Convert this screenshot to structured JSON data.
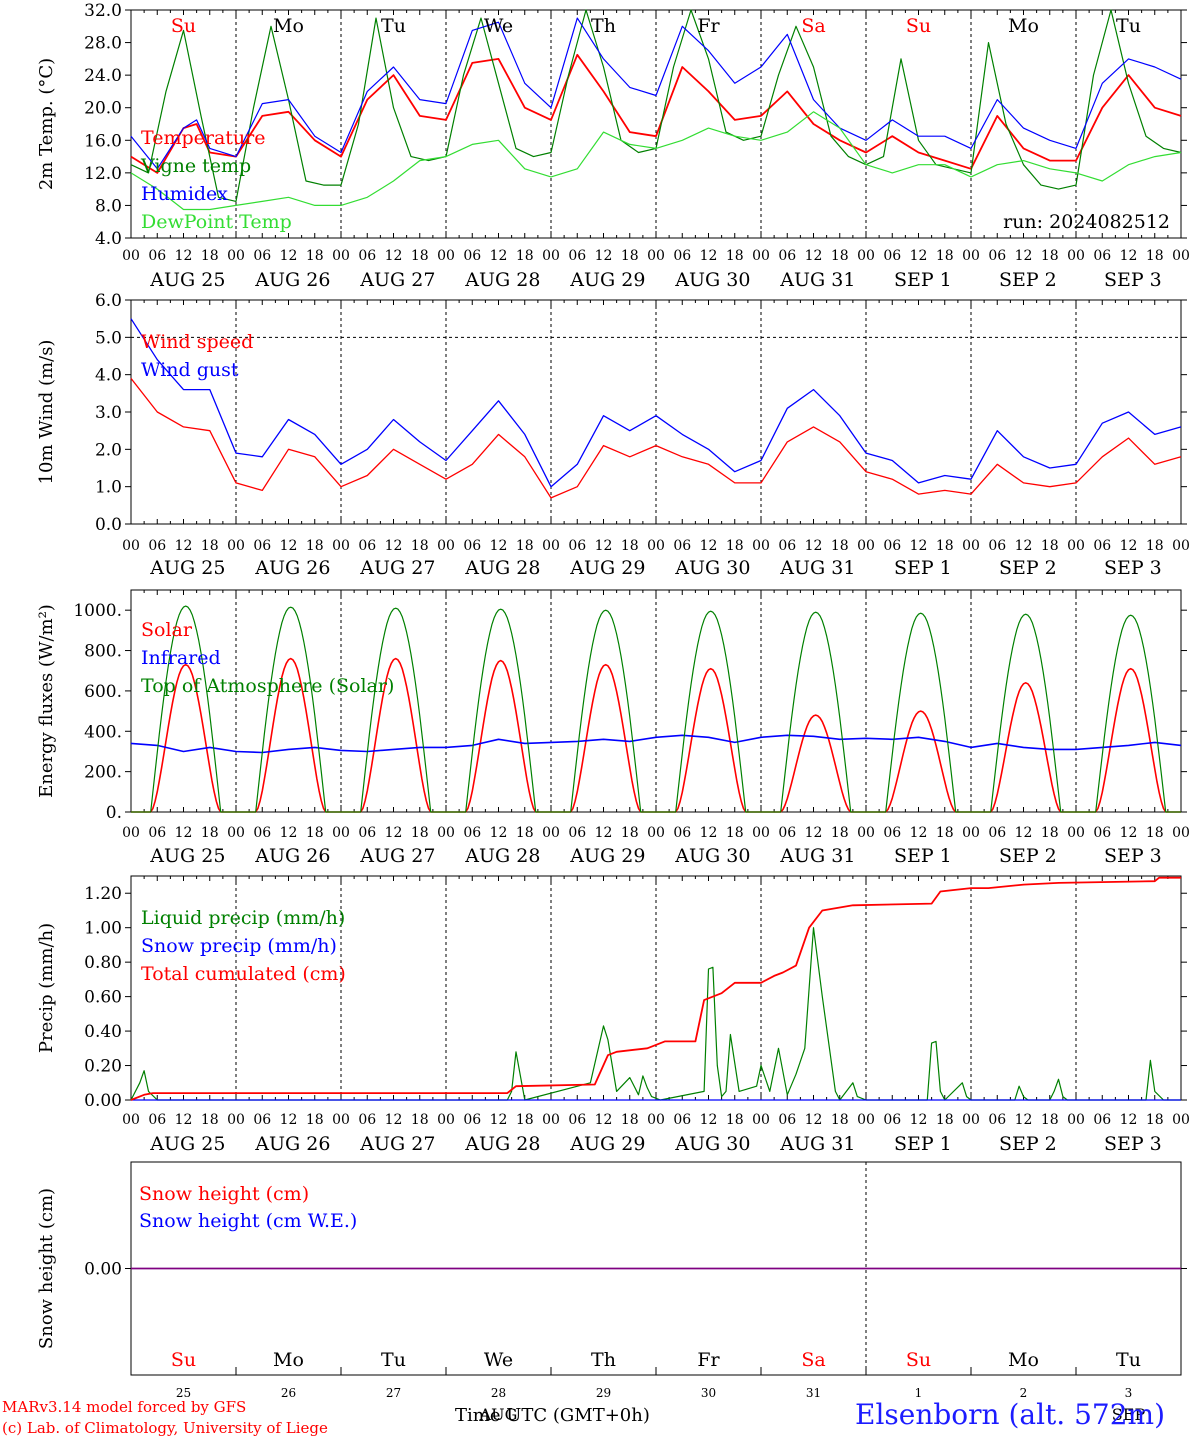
{
  "run_label": "run: 2024082512",
  "day_names": [
    "Su",
    "Mo",
    "Tu",
    "We",
    "Th",
    "Fr",
    "Sa",
    "Su",
    "Mo",
    "Tu"
  ],
  "day_name_colors": [
    "#ff0000",
    "#000000",
    "#000000",
    "#000000",
    "#000000",
    "#000000",
    "#ff0000",
    "#ff0000",
    "#000000",
    "#000000"
  ],
  "date_labels": [
    "AUG 25",
    "AUG 26",
    "AUG 27",
    "AUG 28",
    "AUG 29",
    "AUG 30",
    "AUG 31",
    "SEP  1",
    "SEP  2",
    "SEP  3"
  ],
  "hour_labels": [
    "00",
    "06",
    "12",
    "18"
  ],
  "hour_end_label": "00",
  "bottom_day_numbers": [
    "25",
    "26",
    "27",
    "28",
    "29",
    "30",
    "31",
    "1",
    "2",
    "3"
  ],
  "bottom_month_labels": [
    {
      "text": "AUG",
      "day_index": 3
    },
    {
      "text": "SEP",
      "day_index": 9
    }
  ],
  "footer": {
    "model": "MARv3.14 model forced by GFS",
    "copyright": "(c) Lab. of Climatology, University of Liege",
    "axis_title": "Time UTC (GMT+0h)",
    "station": "Elsenborn (alt. 572m)"
  },
  "chart_data": [
    {
      "type": "line",
      "ylabel": "2m Temp. (°C)",
      "ylim": [
        4.0,
        32.0
      ],
      "yticks": [
        "4.0",
        "8.0",
        "12.0",
        "16.0",
        "20.0",
        "24.0",
        "28.0",
        "32.0"
      ],
      "x_unit": "hours since AUG 25 00 UTC",
      "xlim": [
        0,
        240
      ],
      "legend_placement": "top-left",
      "series": [
        {
          "name": "Temperature",
          "color": "#ff0000",
          "x": [
            0,
            6,
            12,
            15,
            18,
            24,
            30,
            36,
            42,
            48,
            54,
            60,
            66,
            72,
            78,
            84,
            90,
            96,
            102,
            108,
            114,
            120,
            126,
            132,
            138,
            144,
            150,
            156,
            162,
            168,
            174,
            180,
            186,
            192,
            198,
            204,
            210,
            216,
            222,
            228,
            234,
            240
          ],
          "values": [
            14.0,
            12.0,
            17.5,
            18.0,
            14.5,
            14.0,
            19.0,
            19.5,
            16.0,
            14.0,
            21.0,
            24.0,
            19.0,
            18.5,
            25.5,
            26.0,
            20.0,
            18.5,
            26.5,
            22.0,
            17.0,
            16.5,
            25.0,
            22.0,
            18.5,
            19.0,
            22.0,
            18.0,
            16.0,
            14.5,
            16.5,
            14.5,
            13.5,
            12.5,
            19.0,
            15.0,
            13.5,
            13.5,
            20.0,
            24.0,
            20.0,
            19.0
          ]
        },
        {
          "name": "Vigne temp",
          "color": "#008000",
          "x": [
            0,
            4,
            8,
            12,
            16,
            20,
            24,
            28,
            32,
            36,
            40,
            44,
            48,
            52,
            56,
            60,
            64,
            68,
            72,
            76,
            80,
            84,
            88,
            92,
            96,
            100,
            104,
            108,
            112,
            116,
            120,
            124,
            128,
            132,
            136,
            140,
            144,
            148,
            152,
            156,
            160,
            164,
            168,
            172,
            176,
            180,
            184,
            188,
            192,
            196,
            200,
            204,
            208,
            212,
            216,
            220,
            224,
            228,
            232,
            236,
            240
          ],
          "values": [
            13.0,
            12.0,
            22.0,
            29.5,
            19.0,
            9.0,
            8.5,
            20.0,
            30.0,
            21.0,
            11.0,
            10.5,
            10.5,
            18.0,
            31.0,
            20.0,
            14.0,
            13.5,
            14.0,
            24.0,
            31.0,
            23.0,
            15.0,
            14.0,
            14.5,
            24.0,
            32.0,
            25.0,
            16.0,
            14.5,
            15.0,
            25.0,
            32.0,
            26.0,
            17.0,
            16.0,
            16.5,
            24.0,
            30.0,
            25.0,
            16.5,
            14.0,
            13.0,
            14.0,
            26.0,
            16.0,
            13.0,
            12.5,
            12.0,
            28.0,
            18.0,
            13.0,
            10.5,
            10.0,
            10.5,
            24.0,
            32.0,
            23.0,
            16.5,
            15.0,
            14.5
          ]
        },
        {
          "name": "Humidex",
          "color": "#0000ff",
          "x": [
            0,
            6,
            12,
            15,
            18,
            24,
            30,
            36,
            42,
            48,
            54,
            60,
            66,
            72,
            78,
            84,
            90,
            96,
            102,
            108,
            114,
            120,
            126,
            132,
            138,
            144,
            150,
            156,
            162,
            168,
            174,
            180,
            186,
            192,
            198,
            204,
            210,
            216,
            222,
            228,
            234,
            240
          ],
          "values": [
            16.5,
            12.5,
            17.5,
            18.5,
            15.0,
            14.0,
            20.5,
            21.0,
            16.5,
            14.5,
            22.0,
            25.0,
            21.0,
            20.5,
            29.5,
            30.5,
            23.0,
            20.0,
            31.0,
            26.0,
            22.5,
            21.5,
            30.0,
            27.0,
            23.0,
            25.0,
            29.0,
            21.0,
            17.5,
            16.0,
            18.5,
            16.5,
            16.5,
            15.0,
            21.0,
            17.5,
            16.0,
            15.0,
            23.0,
            26.0,
            25.0,
            23.5
          ]
        },
        {
          "name": "DewPoint Temp",
          "color": "#33dd33",
          "x": [
            0,
            6,
            12,
            18,
            24,
            30,
            36,
            42,
            48,
            54,
            60,
            66,
            72,
            78,
            84,
            90,
            96,
            102,
            108,
            114,
            120,
            126,
            132,
            138,
            144,
            150,
            156,
            162,
            168,
            174,
            180,
            186,
            192,
            198,
            204,
            210,
            216,
            222,
            228,
            234,
            240
          ],
          "values": [
            12.0,
            10.0,
            7.5,
            7.5,
            8.0,
            8.5,
            9.0,
            8.0,
            8.0,
            9.0,
            11.0,
            13.5,
            14.0,
            15.5,
            16.0,
            12.5,
            11.5,
            12.5,
            17.0,
            15.5,
            15.0,
            16.0,
            17.5,
            16.5,
            16.0,
            17.0,
            19.5,
            17.5,
            13.0,
            12.0,
            13.0,
            13.0,
            11.5,
            13.0,
            13.5,
            12.5,
            12.0,
            11.0,
            13.0,
            14.0,
            14.5
          ]
        }
      ]
    },
    {
      "type": "line",
      "ylabel": "10m Wind (m/s)",
      "ylim": [
        0.0,
        6.0
      ],
      "yticks": [
        "0.0",
        "1.0",
        "2.0",
        "3.0",
        "4.0",
        "5.0",
        "6.0"
      ],
      "x_unit": "hours since AUG 25 00 UTC",
      "xlim": [
        0,
        240
      ],
      "legend_placement": "top-left",
      "series": [
        {
          "name": "Wind speed",
          "color": "#ff0000",
          "x": [
            0,
            6,
            12,
            18,
            24,
            30,
            36,
            42,
            48,
            54,
            60,
            66,
            72,
            78,
            84,
            90,
            96,
            102,
            108,
            114,
            120,
            126,
            132,
            138,
            144,
            150,
            156,
            162,
            168,
            174,
            180,
            186,
            192,
            198,
            204,
            210,
            216,
            222,
            228,
            234,
            240
          ],
          "values": [
            3.9,
            3.0,
            2.6,
            2.5,
            1.1,
            0.9,
            2.0,
            1.8,
            1.0,
            1.3,
            2.0,
            1.6,
            1.2,
            1.6,
            2.4,
            1.8,
            0.7,
            1.0,
            2.1,
            1.8,
            2.1,
            1.8,
            1.6,
            1.1,
            1.1,
            2.2,
            2.6,
            2.2,
            1.4,
            1.2,
            0.8,
            0.9,
            0.8,
            1.6,
            1.1,
            1.0,
            1.1,
            1.8,
            2.3,
            1.6,
            1.8
          ]
        },
        {
          "name": "Wind gust",
          "color": "#0000ff",
          "x": [
            0,
            6,
            12,
            18,
            24,
            30,
            36,
            42,
            48,
            54,
            60,
            66,
            72,
            78,
            84,
            90,
            96,
            102,
            108,
            114,
            120,
            126,
            132,
            138,
            144,
            150,
            156,
            162,
            168,
            174,
            180,
            186,
            192,
            198,
            204,
            210,
            216,
            222,
            228,
            234,
            240
          ],
          "values": [
            5.5,
            4.4,
            3.6,
            3.6,
            1.9,
            1.8,
            2.8,
            2.4,
            1.6,
            2.0,
            2.8,
            2.2,
            1.7,
            2.5,
            3.3,
            2.4,
            1.0,
            1.6,
            2.9,
            2.5,
            2.9,
            2.4,
            2.0,
            1.4,
            1.7,
            3.1,
            3.6,
            2.9,
            1.9,
            1.7,
            1.1,
            1.3,
            1.2,
            2.5,
            1.8,
            1.5,
            1.6,
            2.7,
            3.0,
            2.4,
            2.6
          ]
        }
      ]
    },
    {
      "type": "line",
      "ylabel": "Energy fluxes (W/m²)",
      "ylim": [
        0,
        1100
      ],
      "yticks": [
        "0.",
        "200.",
        "400.",
        "600.",
        "800.",
        "1000."
      ],
      "x_unit": "hours since AUG 25 00 UTC",
      "xlim": [
        0,
        240
      ],
      "legend_placement": "top-left",
      "series": [
        {
          "name": "Solar",
          "color": "#ff0000",
          "daily_peak": [
            730,
            760,
            760,
            750,
            730,
            710,
            480,
            500,
            640,
            710
          ],
          "peak_hour": 12.5
        },
        {
          "name": "Infrared",
          "color": "#0000ff",
          "x": [
            0,
            6,
            12,
            18,
            24,
            30,
            36,
            42,
            48,
            54,
            60,
            66,
            72,
            78,
            84,
            90,
            96,
            102,
            108,
            114,
            120,
            126,
            132,
            138,
            144,
            150,
            156,
            162,
            168,
            174,
            180,
            186,
            192,
            198,
            204,
            210,
            216,
            222,
            228,
            234,
            240
          ],
          "values": [
            340,
            330,
            300,
            320,
            300,
            295,
            310,
            320,
            305,
            300,
            310,
            320,
            320,
            330,
            360,
            340,
            345,
            350,
            360,
            350,
            370,
            380,
            370,
            345,
            370,
            380,
            375,
            360,
            365,
            360,
            370,
            350,
            320,
            340,
            320,
            310,
            310,
            320,
            330,
            345,
            330
          ]
        },
        {
          "name": "Top of Atmosphere (Solar)",
          "color": "#008000",
          "daily_peak": [
            1020,
            1015,
            1010,
            1005,
            1000,
            995,
            990,
            985,
            980,
            975
          ],
          "peak_hour": 12.5
        }
      ]
    },
    {
      "type": "line",
      "ylabel": "Precip (mm/h)",
      "ylim": [
        0.0,
        1.3
      ],
      "yticks": [
        "0.00",
        "0.20",
        "0.40",
        "0.60",
        "0.80",
        "1.00",
        "1.20"
      ],
      "x_unit": "hours since AUG 25 00 UTC",
      "xlim": [
        0,
        240
      ],
      "legend_placement": "top-left",
      "series": [
        {
          "name": "Liquid precip (mm/h)",
          "color": "#008000",
          "x": [
            0,
            2,
            3,
            4,
            6,
            86,
            87,
            88,
            90,
            105,
            108,
            109,
            111,
            114,
            116,
            117,
            118,
            119,
            121,
            131,
            132,
            133,
            134,
            135,
            136,
            137,
            139,
            143,
            144,
            146,
            148,
            150,
            152,
            154,
            156,
            158,
            161,
            162,
            165,
            166,
            168,
            182,
            183,
            184,
            185,
            186,
            190,
            191,
            192,
            202,
            203,
            204,
            205,
            210,
            211,
            212,
            213,
            214,
            232,
            233,
            234,
            236,
            240
          ],
          "values": [
            0,
            0.1,
            0.17,
            0.05,
            0,
            0,
            0.05,
            0.28,
            0,
            0.1,
            0.43,
            0.35,
            0.05,
            0.13,
            0.03,
            0.14,
            0.07,
            0.02,
            0,
            0.05,
            0.76,
            0.77,
            0.2,
            0.02,
            0.05,
            0.38,
            0.05,
            0.08,
            0.2,
            0.05,
            0.3,
            0.03,
            0.15,
            0.3,
            1.0,
            0.6,
            0.05,
            0,
            0.1,
            0.02,
            0,
            0,
            0.33,
            0.34,
            0.05,
            0,
            0.1,
            0.02,
            0,
            0,
            0.08,
            0.02,
            0,
            0,
            0.05,
            0.12,
            0.02,
            0,
            0,
            0.23,
            0.05,
            0,
            0
          ]
        },
        {
          "name": "Snow precip (mm/h)",
          "color": "#0000ff",
          "x": [
            0,
            240
          ],
          "values": [
            0,
            0
          ]
        },
        {
          "name": "Total cumulated (cm)",
          "color": "#ff0000",
          "x": [
            0,
            3,
            5,
            86,
            88,
            106,
            109,
            111,
            118,
            122,
            129,
            131,
            135,
            138,
            144,
            147,
            149,
            152,
            155,
            158,
            165,
            183,
            185,
            192,
            196,
            204,
            212,
            234,
            235,
            240
          ],
          "values": [
            0,
            0.03,
            0.04,
            0.04,
            0.08,
            0.09,
            0.26,
            0.28,
            0.3,
            0.34,
            0.34,
            0.58,
            0.62,
            0.68,
            0.68,
            0.72,
            0.74,
            0.78,
            1.0,
            1.1,
            1.13,
            1.14,
            1.21,
            1.23,
            1.23,
            1.25,
            1.26,
            1.27,
            1.29,
            1.29
          ]
        }
      ]
    },
    {
      "type": "line",
      "ylabel": "Snow height (cm)",
      "ylim": [
        -1,
        1
      ],
      "yticks": [
        "0.00"
      ],
      "x_unit": "hours since AUG 25 00 UTC",
      "xlim": [
        0,
        240
      ],
      "legend_placement": "top-left",
      "series": [
        {
          "name": "Snow height (cm)",
          "color": "#ff0000",
          "x": [
            0,
            240
          ],
          "values": [
            0,
            0
          ]
        },
        {
          "name": "Snow height (cm W.E.)",
          "color": "#0000ff",
          "x": [
            0,
            240
          ],
          "values": [
            0,
            0
          ]
        }
      ]
    }
  ]
}
